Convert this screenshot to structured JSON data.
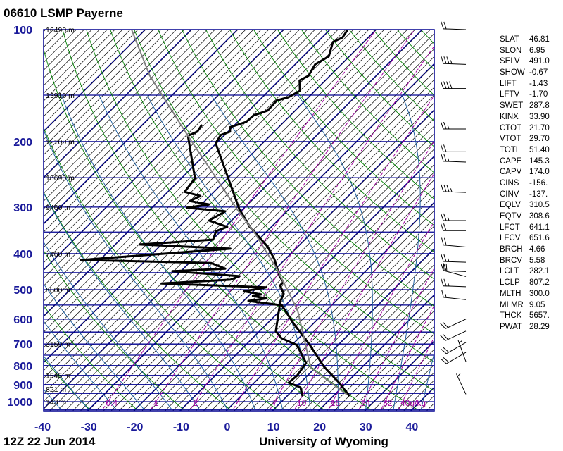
{
  "title": "06610 LSMP Payerne",
  "footer": {
    "time": "12Z 22 Jun 2014",
    "source": "University of Wyoming"
  },
  "chart_data": {
    "type": "line",
    "subtype": "skew-T log-P",
    "pressure_axis": {
      "unit": "hPa",
      "scale": "log",
      "range": [
        100,
        1050
      ],
      "ticks": [
        "100",
        "200",
        "300",
        "400",
        "500",
        "600",
        "700",
        "800",
        "900",
        "1000"
      ]
    },
    "temperature_axis": {
      "unit": "C",
      "range_at_base": [
        -40,
        45
      ],
      "ticks": [
        "-40",
        "-30",
        "-20",
        "-10",
        "0",
        "10",
        "20",
        "30",
        "40"
      ]
    },
    "height_labels": [
      {
        "p": 100,
        "label": "16490 m"
      },
      {
        "p": 150,
        "label": "13910 m"
      },
      {
        "p": 200,
        "label": "12100 m"
      },
      {
        "p": 250,
        "label": "10690 m"
      },
      {
        "p": 300,
        "label": "9460 m"
      },
      {
        "p": 400,
        "label": "7460 m"
      },
      {
        "p": 500,
        "label": "5800 m"
      },
      {
        "p": 700,
        "label": "3159 m"
      },
      {
        "p": 850,
        "label": "1545 m"
      },
      {
        "p": 925,
        "label": "821 m"
      },
      {
        "p": 1000,
        "label": "143 m"
      }
    ],
    "mixing_ratio_labels": [
      {
        "w": 0.4,
        "label": "0.4"
      },
      {
        "w": 1,
        "label": "1"
      },
      {
        "w": 2,
        "label": "2"
      },
      {
        "w": 4,
        "label": "4"
      },
      {
        "w": 7,
        "label": "7"
      },
      {
        "w": 10,
        "label": "10"
      },
      {
        "w": 16,
        "label": "16"
      },
      {
        "w": 24,
        "label": "24"
      },
      {
        "w": 32,
        "label": "32"
      },
      {
        "w": 40,
        "label": "40g/kg"
      }
    ],
    "series": [
      {
        "name": "temperature",
        "color": "#000000",
        "points": [
          [
            966,
            23.6
          ],
          [
            889,
            18.4
          ],
          [
            804,
            11.6
          ],
          [
            705,
            4.0
          ],
          [
            619,
            -4.0
          ],
          [
            550,
            -10.8
          ],
          [
            543,
            -11.7
          ],
          [
            513,
            -12.8
          ],
          [
            487,
            -15.4
          ],
          [
            477,
            -15.4
          ],
          [
            460,
            -17.5
          ],
          [
            414,
            -22.3
          ],
          [
            383,
            -26.5
          ],
          [
            339,
            -34.6
          ],
          [
            304,
            -40.7
          ],
          [
            202,
            -60.1
          ],
          [
            192,
            -60.8
          ],
          [
            188,
            -59.5
          ],
          [
            183,
            -60.5
          ],
          [
            177,
            -58.1
          ],
          [
            170,
            -57.9
          ],
          [
            165,
            -55.9
          ],
          [
            155,
            -56.1
          ],
          [
            152,
            -54.3
          ],
          [
            146,
            -53.2
          ],
          [
            137,
            -55.5
          ],
          [
            133,
            -54.6
          ],
          [
            124,
            -55.6
          ],
          [
            118,
            -54.4
          ],
          [
            108,
            -56.6
          ],
          [
            105,
            -55.5
          ],
          [
            100,
            -56.1
          ]
        ]
      },
      {
        "name": "dewpoint",
        "color": "#000000",
        "points": [
          [
            966,
            13.4
          ],
          [
            916,
            11.1
          ],
          [
            889,
            7.5
          ],
          [
            851,
            7.8
          ],
          [
            787,
            7.0
          ],
          [
            705,
            1.2
          ],
          [
            675,
            -3.7
          ],
          [
            647,
            -6.4
          ],
          [
            550,
            -11.2
          ],
          [
            536,
            -18.9
          ],
          [
            528,
            -15.5
          ],
          [
            520,
            -19.0
          ],
          [
            515,
            -17.5
          ],
          [
            505,
            -22.0
          ],
          [
            493,
            -18.0
          ],
          [
            481,
            -41.5
          ],
          [
            470,
            -27.4
          ],
          [
            460,
            -26.2
          ],
          [
            446,
            -41.8
          ],
          [
            439,
            -30.9
          ],
          [
            424,
            -35.2
          ],
          [
            416,
            -64.0
          ],
          [
            388,
            -34.1
          ],
          [
            378,
            -54.7
          ],
          [
            367,
            -39.8
          ],
          [
            348,
            -41.0
          ],
          [
            339,
            -39.5
          ],
          [
            326,
            -44.8
          ],
          [
            308,
            -43.3
          ],
          [
            301,
            -52.4
          ],
          [
            295,
            -48.3
          ],
          [
            289,
            -53.2
          ],
          [
            280,
            -52.0
          ],
          [
            273,
            -56.3
          ],
          [
            251,
            -57.0
          ],
          [
            193,
            -67.7
          ],
          [
            188,
            -66.6
          ],
          [
            180,
            -67.1
          ]
        ]
      },
      {
        "name": "parcel",
        "color": "#808080",
        "points": [
          [
            957,
            22.7
          ],
          [
            811,
            9.1
          ],
          [
            567,
            -6.3
          ],
          [
            437,
            -20.0
          ],
          [
            348,
            -32.9
          ],
          [
            304,
            -41.2
          ],
          [
            193,
            -67.7
          ],
          [
            133,
            -89.0
          ],
          [
            100,
            -102.9
          ]
        ]
      }
    ],
    "wind_barbs": [
      {
        "p": 100,
        "dir": 272,
        "kt": 20
      },
      {
        "p": 124,
        "dir": 272,
        "kt": 35
      },
      {
        "p": 144,
        "dir": 270,
        "kt": 40
      },
      {
        "p": 185,
        "dir": 270,
        "kt": 25
      },
      {
        "p": 213,
        "dir": 270,
        "kt": 20
      },
      {
        "p": 227,
        "dir": 272,
        "kt": 25
      },
      {
        "p": 274,
        "dir": 272,
        "kt": 35
      },
      {
        "p": 326,
        "dir": 270,
        "kt": 25
      },
      {
        "p": 347,
        "dir": 270,
        "kt": 20
      },
      {
        "p": 384,
        "dir": 275,
        "kt": 20
      },
      {
        "p": 422,
        "dir": 272,
        "kt": 25
      },
      {
        "p": 447,
        "dir": 272,
        "kt": 20
      },
      {
        "p": 461,
        "dir": 285,
        "kt": 20
      },
      {
        "p": 491,
        "dir": 272,
        "kt": 25
      },
      {
        "p": 532,
        "dir": 276,
        "kt": 15
      },
      {
        "p": 600,
        "dir": 245,
        "kt": 20
      },
      {
        "p": 646,
        "dir": 245,
        "kt": 20
      },
      {
        "p": 693,
        "dir": 240,
        "kt": 20
      },
      {
        "p": 737,
        "dir": 240,
        "kt": 20
      },
      {
        "p": 780,
        "dir": 340,
        "kt": 5
      },
      {
        "p": 955,
        "dir": 335,
        "kt": 5
      }
    ],
    "colors": {
      "isobar": "#000090",
      "isotherm": "#000000",
      "dry_adiabat": "#008000",
      "moist_adiabat": "#1f5f9f",
      "mixing_ratio": "#a000a0",
      "axis_label": "#1a1a9a"
    }
  },
  "indices": [
    {
      "name": "SLAT",
      "value": "46.81"
    },
    {
      "name": "SLON",
      "value": "6.95"
    },
    {
      "name": "SELV",
      "value": "491.0"
    },
    {
      "name": "SHOW",
      "value": "-0.67"
    },
    {
      "name": "LIFT",
      "value": "-1.43"
    },
    {
      "name": "LFTV",
      "value": "-1.70"
    },
    {
      "name": "SWET",
      "value": "287.8"
    },
    {
      "name": "KINX",
      "value": "33.90"
    },
    {
      "name": "CTOT",
      "value": "21.70"
    },
    {
      "name": "VTOT",
      "value": "29.70"
    },
    {
      "name": "TOTL",
      "value": "51.40"
    },
    {
      "name": "CAPE",
      "value": "145.3"
    },
    {
      "name": "CAPV",
      "value": "174.0"
    },
    {
      "name": "CINS",
      "value": "-156."
    },
    {
      "name": "CINV",
      "value": "-137."
    },
    {
      "name": "EQLV",
      "value": "310.5"
    },
    {
      "name": "EQTV",
      "value": "308.6"
    },
    {
      "name": "LFCT",
      "value": "641.1"
    },
    {
      "name": "LFCV",
      "value": "651.6"
    },
    {
      "name": "BRCH",
      "value": "4.66"
    },
    {
      "name": "BRCV",
      "value": "5.58"
    },
    {
      "name": "LCLT",
      "value": "282.1"
    },
    {
      "name": "LCLP",
      "value": "807.2"
    },
    {
      "name": "MLTH",
      "value": "300.0"
    },
    {
      "name": "MLMR",
      "value": "9.05"
    },
    {
      "name": "THCK",
      "value": "5657."
    },
    {
      "name": "PWAT",
      "value": "28.29"
    }
  ]
}
